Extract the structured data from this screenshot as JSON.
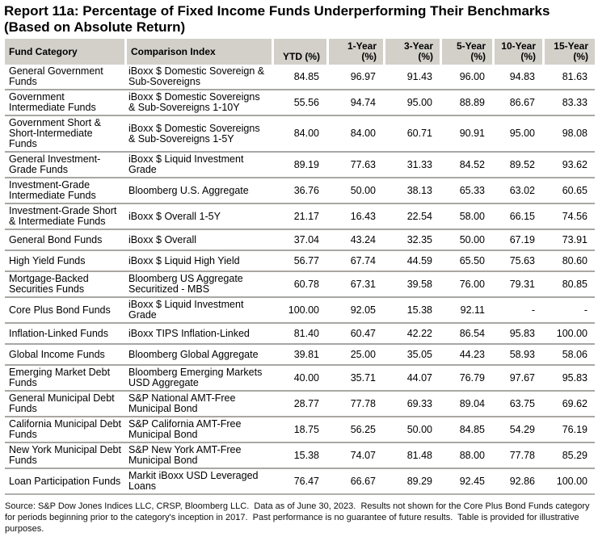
{
  "title": {
    "line1": "Report 11a: Percentage of Fixed Income Funds Underperforming Their Benchmarks",
    "line2": "(Based on Absolute Return)"
  },
  "table": {
    "columns": [
      "Fund Category",
      "Comparison Index",
      "YTD (%)",
      "1-Year (%)",
      "3-Year (%)",
      "5-Year (%)",
      "10-Year (%)",
      "15-Year (%)"
    ],
    "rows": [
      {
        "category": "General Government Funds",
        "index": "iBoxx $ Domestic Sovereign & Sub-Sovereigns",
        "values": [
          "84.85",
          "96.97",
          "91.43",
          "96.00",
          "94.83",
          "81.63"
        ]
      },
      {
        "category": "Government Intermediate Funds",
        "index": "iBoxx $ Domestic Sovereigns & Sub-Sovereigns 1-10Y",
        "values": [
          "55.56",
          "94.74",
          "95.00",
          "88.89",
          "86.67",
          "83.33"
        ]
      },
      {
        "category": "Government Short & Short-Intermediate Funds",
        "index": "iBoxx $ Domestic Sovereigns & Sub-Sovereigns 1-5Y",
        "values": [
          "84.00",
          "84.00",
          "60.71",
          "90.91",
          "95.00",
          "98.08"
        ]
      },
      {
        "category": "General Investment-Grade Funds",
        "index": "iBoxx $ Liquid Investment Grade",
        "values": [
          "89.19",
          "77.63",
          "31.33",
          "84.52",
          "89.52",
          "93.62"
        ]
      },
      {
        "category": "Investment-Grade Intermediate Funds",
        "index": "Bloomberg U.S. Aggregate",
        "values": [
          "36.76",
          "50.00",
          "38.13",
          "65.33",
          "63.02",
          "60.65"
        ]
      },
      {
        "category": "Investment-Grade Short & Intermediate Funds",
        "index": "iBoxx $ Overall 1-5Y",
        "values": [
          "21.17",
          "16.43",
          "22.54",
          "58.00",
          "66.15",
          "74.56"
        ]
      },
      {
        "category": "General Bond Funds",
        "index": "iBoxx $ Overall",
        "values": [
          "37.04",
          "43.24",
          "32.35",
          "50.00",
          "67.19",
          "73.91"
        ]
      },
      {
        "category": "High Yield Funds",
        "index": "iBoxx $ Liquid High Yield",
        "values": [
          "56.77",
          "67.74",
          "44.59",
          "65.50",
          "75.63",
          "80.60"
        ]
      },
      {
        "category": "Mortgage-Backed Securities Funds",
        "index": "Bloomberg US Aggregate Securitized - MBS",
        "values": [
          "60.78",
          "67.31",
          "39.58",
          "76.00",
          "79.31",
          "80.85"
        ]
      },
      {
        "category": "Core Plus Bond Funds",
        "index": "iBoxx $ Liquid Investment Grade",
        "values": [
          "100.00",
          "92.05",
          "15.38",
          "92.11",
          "-",
          "-"
        ]
      },
      {
        "category": "Inflation-Linked Funds",
        "index": "iBoxx TIPS Inflation-Linked",
        "values": [
          "81.40",
          "60.47",
          "42.22",
          "86.54",
          "95.83",
          "100.00"
        ]
      },
      {
        "category": "Global Income Funds",
        "index": "Bloomberg Global Aggregate",
        "values": [
          "39.81",
          "25.00",
          "35.05",
          "44.23",
          "58.93",
          "58.06"
        ]
      },
      {
        "category": "Emerging Market Debt Funds",
        "index": "Bloomberg Emerging Markets USD Aggregate",
        "values": [
          "40.00",
          "35.71",
          "44.07",
          "76.79",
          "97.67",
          "95.83"
        ]
      },
      {
        "category": "General Municipal Debt Funds",
        "index": "S&P National AMT-Free Municipal Bond",
        "values": [
          "28.77",
          "77.78",
          "69.33",
          "89.04",
          "63.75",
          "69.62"
        ]
      },
      {
        "category": "California Municipal Debt Funds",
        "index": "S&P California AMT-Free Municipal Bond",
        "values": [
          "18.75",
          "56.25",
          "50.00",
          "84.85",
          "54.29",
          "76.19"
        ]
      },
      {
        "category": "New York Municipal Debt Funds",
        "index": "S&P New York AMT-Free Municipal Bond",
        "values": [
          "15.38",
          "74.07",
          "81.48",
          "88.00",
          "77.78",
          "85.29"
        ]
      },
      {
        "category": "Loan Participation Funds",
        "index": "Markit iBoxx USD Leveraged Loans",
        "values": [
          "76.47",
          "66.67",
          "89.29",
          "92.45",
          "92.86",
          "100.00"
        ]
      }
    ]
  },
  "footnote": "Source: S&P Dow Jones Indices LLC, CRSP, Bloomberg LLC.  Data as of June 30, 2023.  Results not shown for the Core Plus Bond Funds category for periods beginning prior to the category's inception in 2017.  Past performance is no guarantee of future results.  Table is provided for illustrative purposes.",
  "colors": {
    "header_bg": "#d3d0ca",
    "row_border": "#a9a7a3",
    "text": "#000000"
  }
}
